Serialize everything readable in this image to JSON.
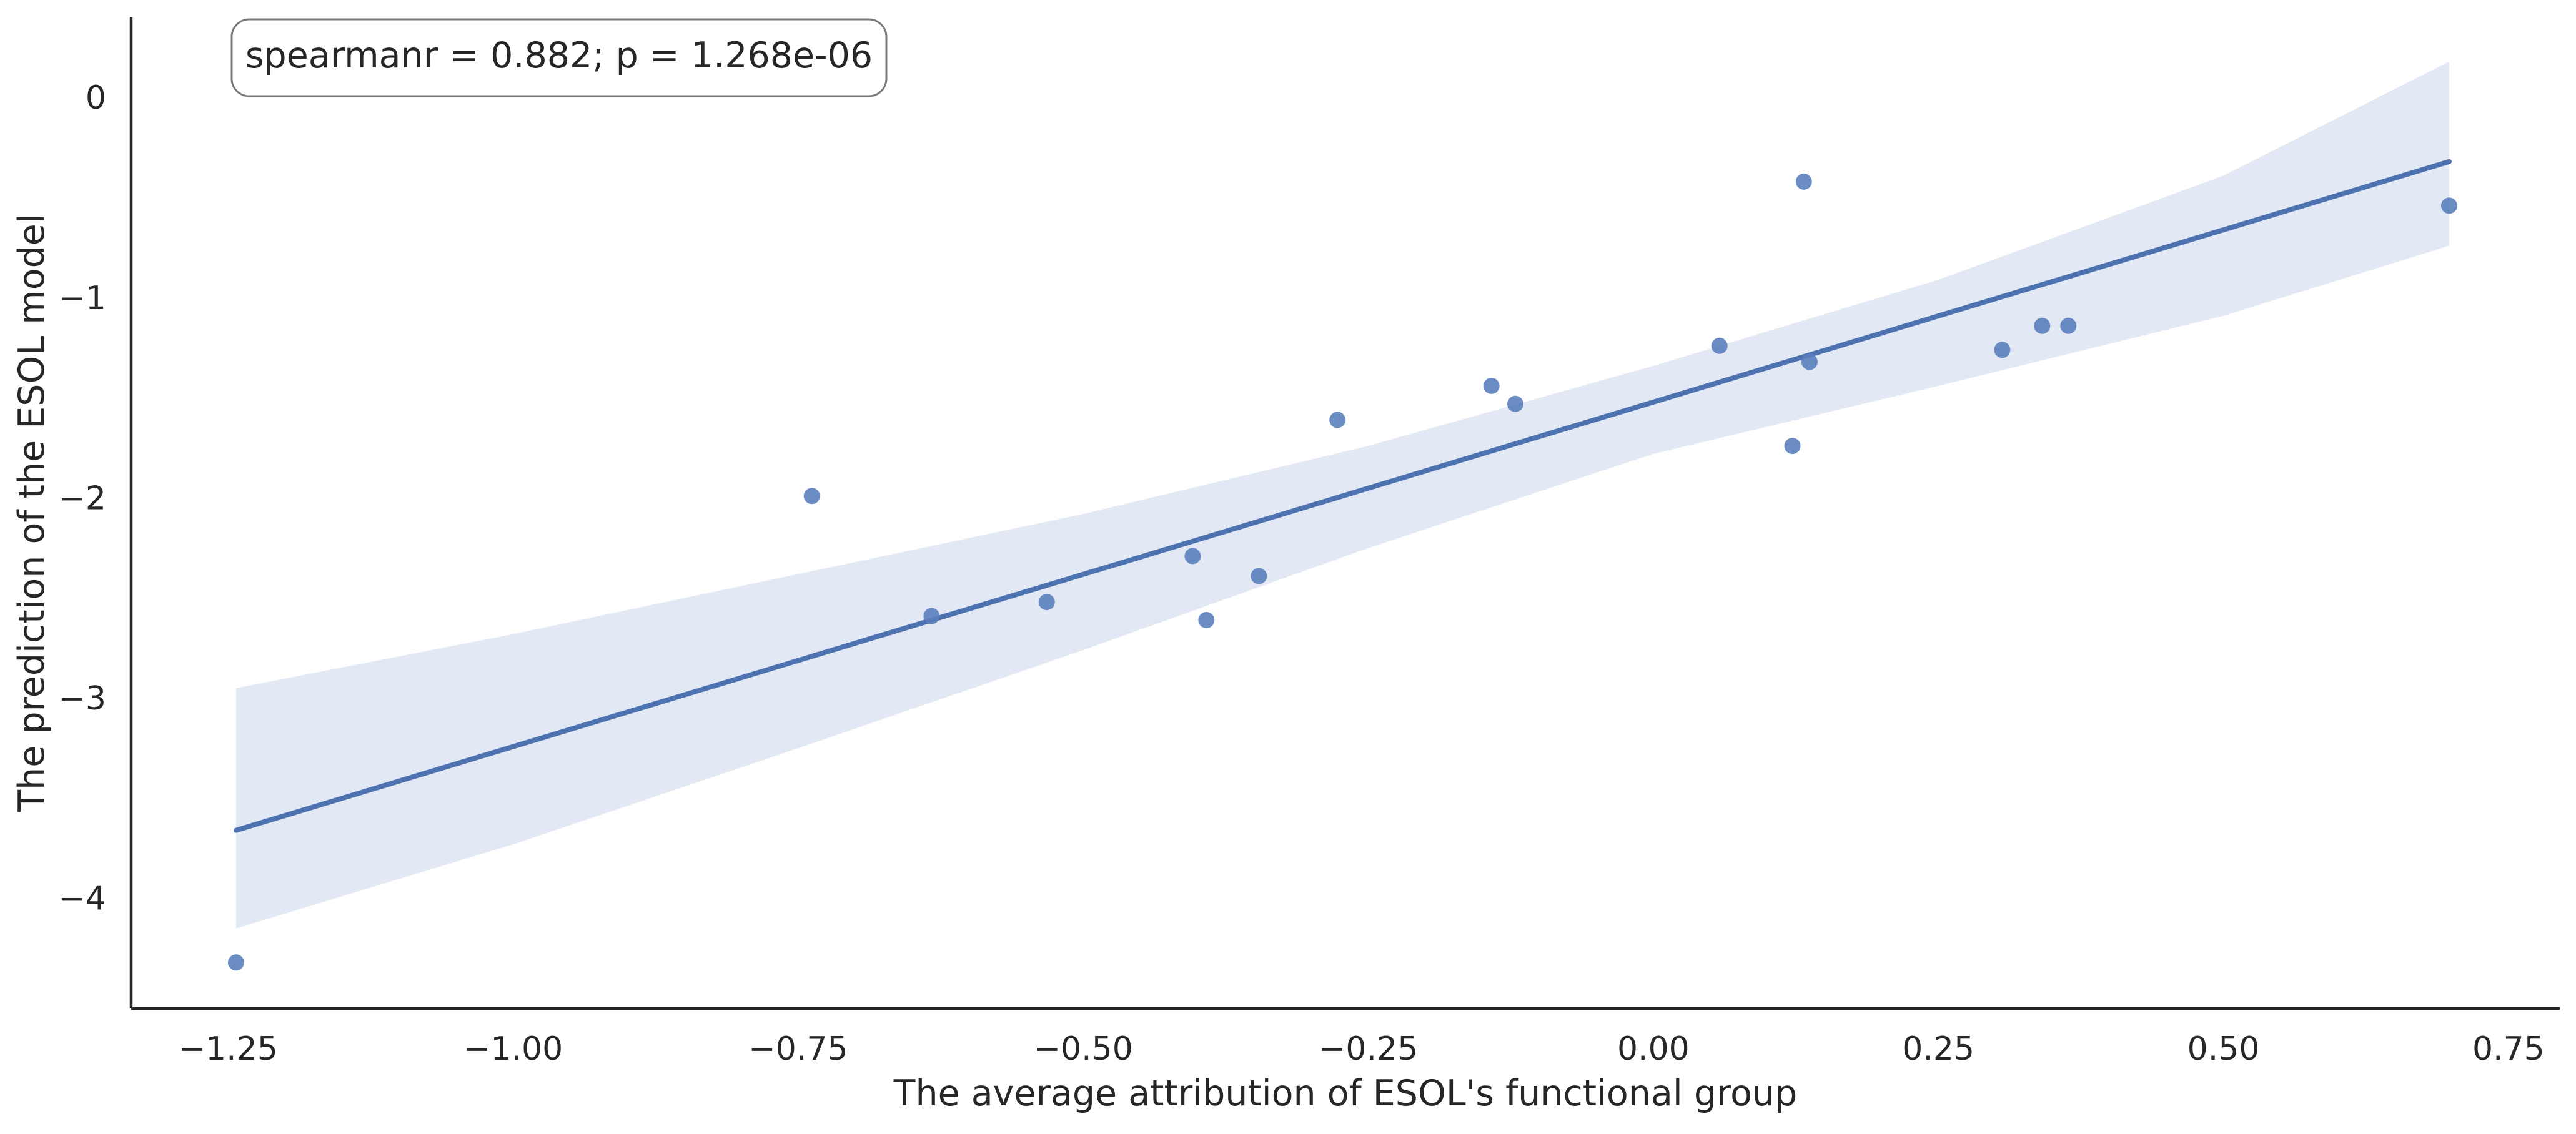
{
  "chart_data": {
    "type": "scatter",
    "title": "",
    "xlabel": "The average attribution of ESOL's functional group",
    "ylabel": "The prediction of the ESOL model",
    "xlim": [
      -1.335,
      0.795
    ],
    "ylim": [
      -4.55,
      0.4
    ],
    "xticks": [
      -1.25,
      -1.0,
      -0.75,
      -0.5,
      -0.25,
      0.0,
      0.25,
      0.5,
      0.75
    ],
    "xtick_labels": [
      "−1.25",
      "−1.00",
      "−0.75",
      "−0.50",
      "−0.25",
      "0.00",
      "0.25",
      "0.50",
      "0.75"
    ],
    "yticks": [
      0,
      -1,
      -2,
      -3,
      -4
    ],
    "ytick_labels": [
      "0",
      "−1",
      "−2",
      "−3",
      "−4"
    ],
    "grid": false,
    "annotation": "spearmanr = 0.882; p = 1.268e-06",
    "points": [
      {
        "x": -1.243,
        "y": -4.32
      },
      {
        "x": -0.738,
        "y": -1.99
      },
      {
        "x": -0.633,
        "y": -2.59
      },
      {
        "x": -0.532,
        "y": -2.52
      },
      {
        "x": -0.404,
        "y": -2.29
      },
      {
        "x": -0.392,
        "y": -2.61
      },
      {
        "x": -0.346,
        "y": -2.39
      },
      {
        "x": -0.277,
        "y": -1.61
      },
      {
        "x": -0.142,
        "y": -1.44
      },
      {
        "x": -0.121,
        "y": -1.53
      },
      {
        "x": 0.058,
        "y": -1.24
      },
      {
        "x": 0.122,
        "y": -1.74
      },
      {
        "x": 0.132,
        "y": -0.42
      },
      {
        "x": 0.137,
        "y": -1.32
      },
      {
        "x": 0.306,
        "y": -1.26
      },
      {
        "x": 0.341,
        "y": -1.14
      },
      {
        "x": 0.364,
        "y": -1.14
      },
      {
        "x": 0.698,
        "y": -0.54
      }
    ],
    "regression": {
      "x": [
        -1.243,
        0.698
      ],
      "y": [
        -3.66,
        -0.32
      ]
    },
    "confidence_band": {
      "x": [
        -1.243,
        -1.0,
        -0.75,
        -0.5,
        -0.25,
        0.0,
        0.25,
        0.5,
        0.698
      ],
      "upper": [
        -2.95,
        -2.68,
        -2.38,
        -2.08,
        -1.74,
        -1.34,
        -0.91,
        -0.39,
        0.18
      ],
      "lower": [
        -4.15,
        -3.73,
        -3.25,
        -2.76,
        -2.25,
        -1.78,
        -1.44,
        -1.09,
        -0.74
      ]
    },
    "colors": {
      "points": "#5b7fbd",
      "line": "#4c72b0",
      "band": "#e2e8f4",
      "axis": "#262626",
      "annotation_border": "#7a7a7a"
    }
  }
}
